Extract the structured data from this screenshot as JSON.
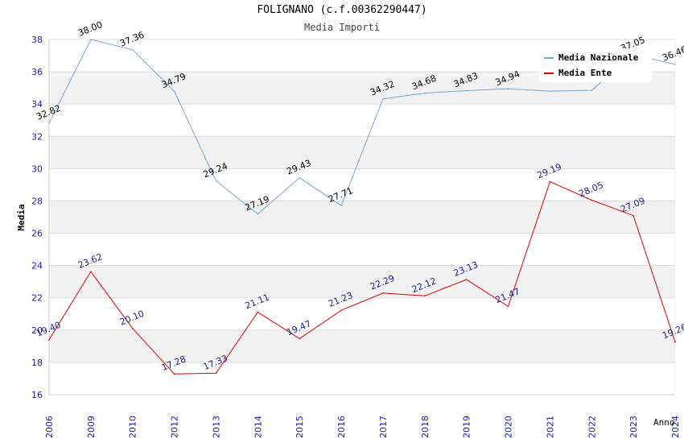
{
  "chart_data": {
    "type": "line",
    "title": "FOLIGNANO (c.f.00362290447)",
    "subtitle": "Media Importi",
    "xlabel": "Anno",
    "ylabel": "Media",
    "ylim": [
      16,
      38
    ],
    "yticks": [
      16,
      18,
      20,
      22,
      24,
      26,
      28,
      30,
      32,
      34,
      36,
      38
    ],
    "grid": true,
    "legend_position": "top-right",
    "categories": [
      "2006",
      "2009",
      "2010",
      "2012",
      "2013",
      "2014",
      "2015",
      "2016",
      "2017",
      "2018",
      "2019",
      "2020",
      "2021",
      "2022",
      "2023",
      "2024"
    ],
    "series": [
      {
        "name": "Media Nazionale",
        "color": "#6fa8dc",
        "values": [
          32.82,
          38.0,
          37.36,
          34.79,
          29.24,
          27.19,
          29.43,
          27.71,
          34.32,
          34.68,
          34.83,
          34.94,
          34.8,
          34.85,
          37.05,
          36.46
        ],
        "labels": [
          "32.82",
          "38.00",
          "37.36",
          "34.79",
          "29.24",
          "27.19",
          "29.43",
          "27.71",
          "34.32",
          "34.68",
          "34.83",
          "34.94",
          "",
          "",
          "37.05",
          "36.46"
        ]
      },
      {
        "name": "Media Ente",
        "color": "#e00000",
        "values": [
          19.4,
          23.62,
          20.1,
          17.28,
          17.33,
          21.11,
          19.47,
          21.23,
          22.29,
          22.12,
          23.13,
          21.47,
          29.19,
          28.05,
          27.09,
          19.26
        ],
        "labels": [
          "19.40",
          "23.62",
          "20.10",
          "17.28",
          "17.33",
          "21.11",
          "19.47",
          "21.23",
          "22.29",
          "22.12",
          "23.13",
          "21.47",
          "29.19",
          "28.05",
          "27.09",
          "19.26"
        ]
      }
    ]
  }
}
